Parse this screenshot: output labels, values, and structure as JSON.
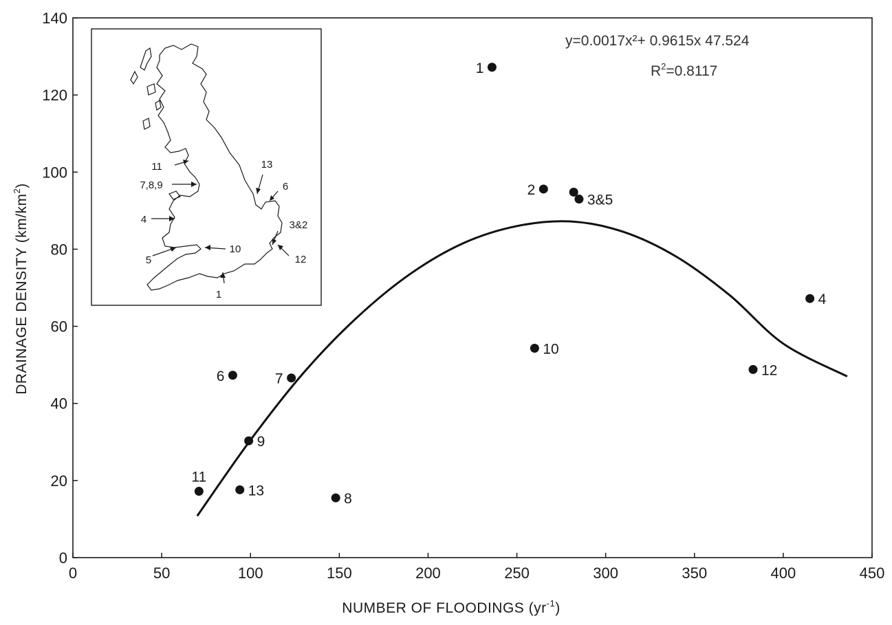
{
  "chart_data": {
    "type": "scatter",
    "xlabel": "NUMBER OF FLOODINGS (yr",
    "xlabel_sup": "-1",
    "xlabel_end": ")",
    "ylabel": "DRAINAGE DENSITY (km/km",
    "ylabel_sup": "2",
    "ylabel_end": ")",
    "xlim": [
      0,
      450
    ],
    "ylim": [
      0,
      140
    ],
    "x_ticks": [
      0,
      50,
      100,
      150,
      200,
      250,
      300,
      350,
      400,
      450
    ],
    "y_ticks": [
      0,
      20,
      40,
      60,
      80,
      100,
      120,
      140
    ],
    "grid": false,
    "points": [
      {
        "label": "1",
        "x": 236,
        "y": 127.2,
        "label_pos": "left"
      },
      {
        "label": "2",
        "x": 265,
        "y": 95.6,
        "label_pos": "left"
      },
      {
        "label": "",
        "x": 282,
        "y": 94.8,
        "label_pos": "none"
      },
      {
        "label": "3&5",
        "x": 285,
        "y": 93.0,
        "label_pos": "right"
      },
      {
        "label": "4",
        "x": 415,
        "y": 67.2,
        "label_pos": "right"
      },
      {
        "label": "10",
        "x": 260,
        "y": 54.3,
        "label_pos": "right"
      },
      {
        "label": "12",
        "x": 383,
        "y": 48.8,
        "label_pos": "right"
      },
      {
        "label": "6",
        "x": 90,
        "y": 47.3,
        "label_pos": "left"
      },
      {
        "label": "7",
        "x": 123,
        "y": 46.6,
        "label_pos": "left"
      },
      {
        "label": "9",
        "x": 99,
        "y": 30.3,
        "label_pos": "right"
      },
      {
        "label": "11",
        "x": 71,
        "y": 17.2,
        "label_pos": "above"
      },
      {
        "label": "13",
        "x": 94,
        "y": 17.6,
        "label_pos": "right"
      },
      {
        "label": "8",
        "x": 148,
        "y": 15.5,
        "label_pos": "right"
      }
    ],
    "fit_curve": {
      "type": "quadratic",
      "x": [
        70,
        100,
        130,
        160,
        190,
        220,
        250,
        280,
        310,
        340,
        370,
        400,
        436
      ],
      "y": [
        10.8,
        30.5,
        48.0,
        62.3,
        73.6,
        81.6,
        86.0,
        87.2,
        84.5,
        78.0,
        68.0,
        55.5,
        47.0
      ]
    },
    "annotations": {
      "equation": "y=0.0017x²+ 0.9615x 47.524",
      "r2_prefix": "R",
      "r2_sup": "2",
      "r2_suffix": "=0.8117"
    },
    "inset_map": {
      "labels": [
        "11",
        "7,8,9",
        "4",
        "5",
        "10",
        "1",
        "13",
        "6",
        "3&2",
        "12"
      ]
    },
    "colors": {
      "ink": "#1a1a1a",
      "background": "#ffffff"
    }
  }
}
